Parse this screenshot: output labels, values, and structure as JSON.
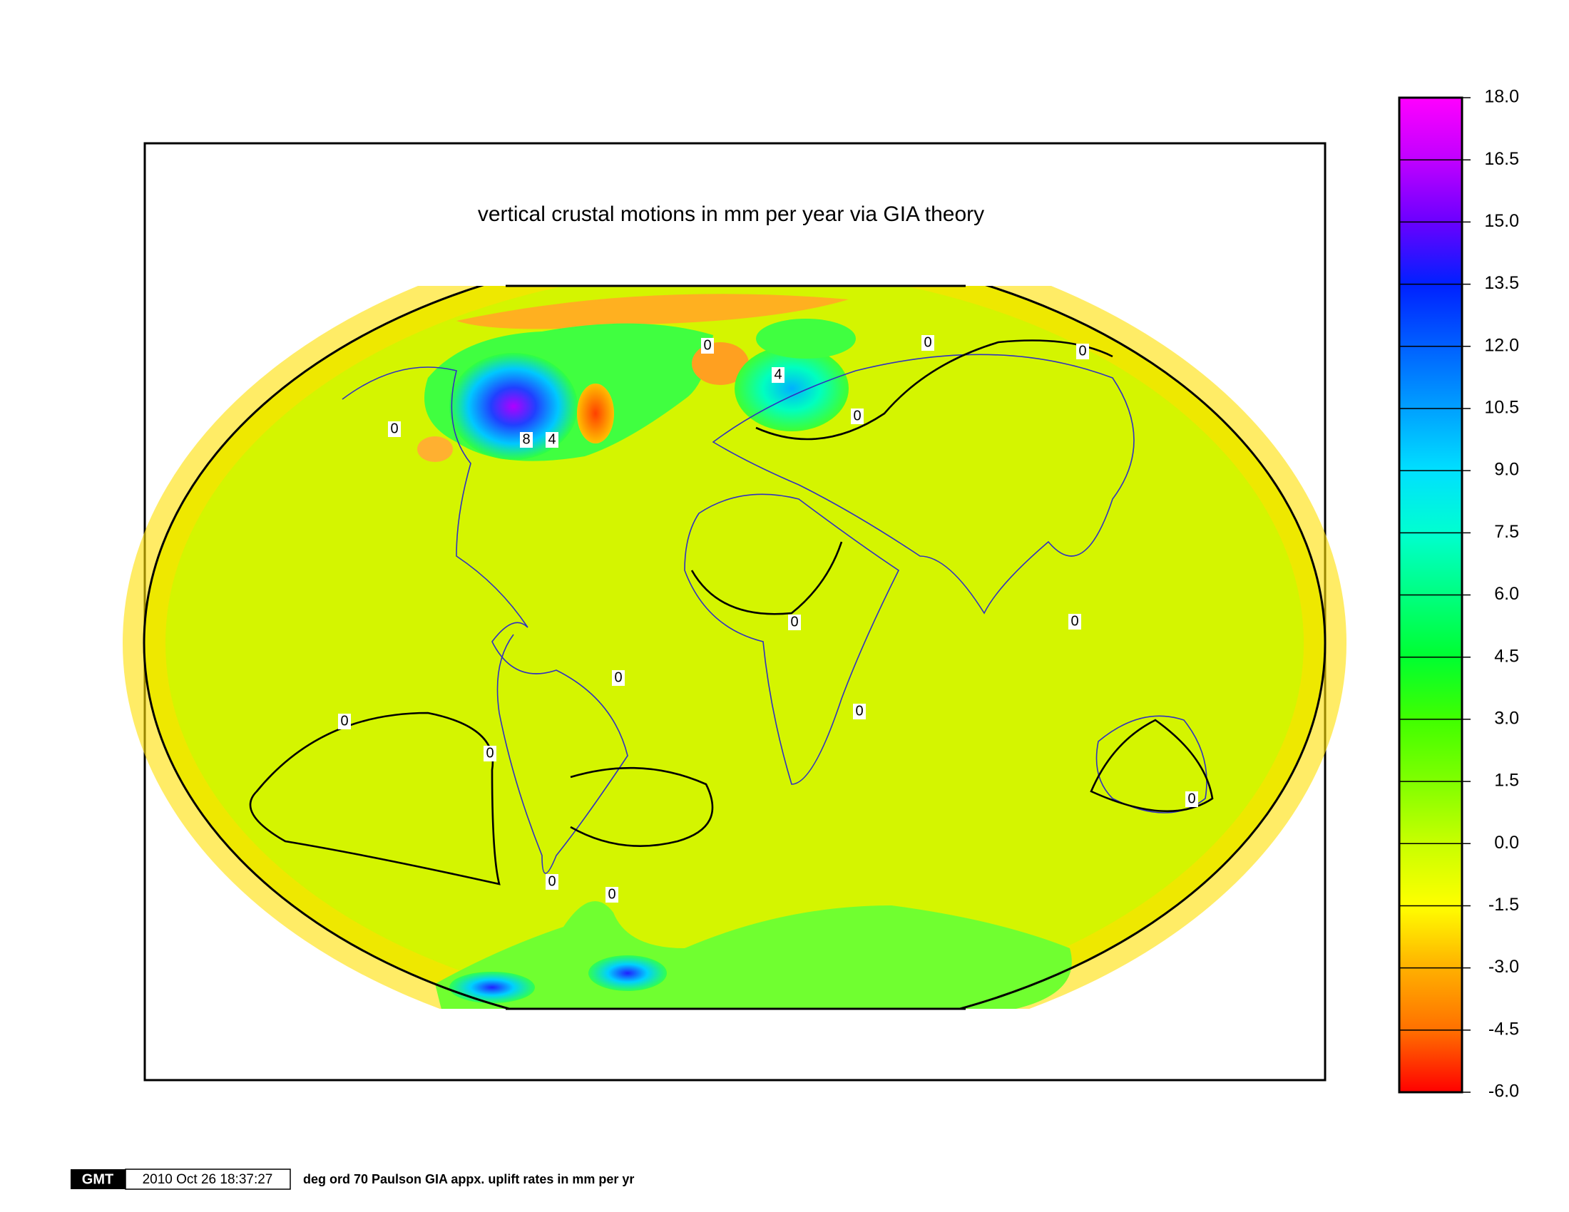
{
  "title": "vertical crustal motions in mm per year via GIA theory",
  "colorbar": {
    "lim": [
      -6,
      18
    ],
    "ticks": [
      {
        "value": 18,
        "label": "18.0"
      },
      {
        "value": 16.5,
        "label": "16.5"
      },
      {
        "value": 15,
        "label": "15.0"
      },
      {
        "value": 13.5,
        "label": "13.5"
      },
      {
        "value": 12,
        "label": "12.0"
      },
      {
        "value": 10.5,
        "label": "10.5"
      },
      {
        "value": 9,
        "label": "9.0"
      },
      {
        "value": 7.5,
        "label": "7.5"
      },
      {
        "value": 6,
        "label": "6.0"
      },
      {
        "value": 4.5,
        "label": "4.5"
      },
      {
        "value": 3,
        "label": "3.0"
      },
      {
        "value": 1.5,
        "label": "1.5"
      },
      {
        "value": 0,
        "label": "0.0"
      },
      {
        "value": -1.5,
        "label": "-1.5"
      },
      {
        "value": -3,
        "label": "-3.0"
      },
      {
        "value": -4.5,
        "label": "-4.5"
      },
      {
        "value": -6,
        "label": "-6.0"
      }
    ],
    "colors": [
      "#ff00ff",
      "#c000ff",
      "#6a00ff",
      "#0020ff",
      "#0060ff",
      "#00a0ff",
      "#00e0ff",
      "#00ffd0",
      "#00ff80",
      "#00ff30",
      "#40ff00",
      "#80ff00",
      "#c8ff00",
      "#ffff00",
      "#ffb000",
      "#ff7000",
      "#ff0000"
    ]
  },
  "contour_labels": [
    "0",
    "0",
    "0",
    "0",
    "0",
    "0",
    "0",
    "0",
    "0",
    "0",
    "0",
    "0",
    "0",
    "0",
    "8",
    "4",
    "4"
  ],
  "footer": {
    "logo": "GMT",
    "timestamp": "2010 Oct 26 18:37:27",
    "caption": "deg ord 70 Paulson GIA appx. uplift rates in mm per yr"
  }
}
